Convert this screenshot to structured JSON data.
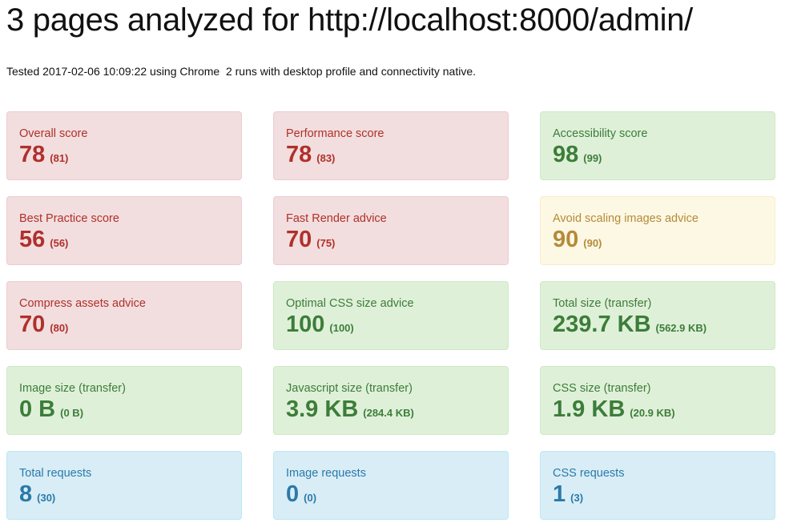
{
  "header": {
    "title": "3 pages analyzed for http://localhost:8000/admin/",
    "summary": "Tested 2017-02-06 10:09:22 using Chrome  2 runs with desktop profile and connectivity native."
  },
  "cards": [
    {
      "label": "Overall score",
      "value": "78",
      "sub": "(81)",
      "status": "danger"
    },
    {
      "label": "Performance score",
      "value": "78",
      "sub": "(83)",
      "status": "danger"
    },
    {
      "label": "Accessibility score",
      "value": "98",
      "sub": "(99)",
      "status": "success"
    },
    {
      "label": "Best Practice score",
      "value": "56",
      "sub": "(56)",
      "status": "danger"
    },
    {
      "label": "Fast Render advice",
      "value": "70",
      "sub": "(75)",
      "status": "danger"
    },
    {
      "label": "Avoid scaling images advice",
      "value": "90",
      "sub": "(90)",
      "status": "warning"
    },
    {
      "label": "Compress assets advice",
      "value": "70",
      "sub": "(80)",
      "status": "danger"
    },
    {
      "label": "Optimal CSS size advice",
      "value": "100",
      "sub": "(100)",
      "status": "success"
    },
    {
      "label": "Total size (transfer)",
      "value": "239.7 KB",
      "sub": "(562.9 KB)",
      "status": "success"
    },
    {
      "label": "Image size (transfer)",
      "value": "0 B",
      "sub": "(0 B)",
      "status": "success"
    },
    {
      "label": "Javascript size (transfer)",
      "value": "3.9 KB",
      "sub": "(284.4 KB)",
      "status": "success"
    },
    {
      "label": "CSS size (transfer)",
      "value": "1.9 KB",
      "sub": "(20.9 KB)",
      "status": "success"
    },
    {
      "label": "Total requests",
      "value": "8",
      "sub": "(30)",
      "status": "info"
    },
    {
      "label": "Image requests",
      "value": "0",
      "sub": "(0)",
      "status": "info"
    },
    {
      "label": "CSS requests",
      "value": "1",
      "sub": "(3)",
      "status": "info"
    }
  ],
  "colors": {
    "danger_bg": "#f2dede",
    "danger_text": "#b0302c",
    "success_bg": "#dff0d8",
    "success_text": "#3c7d3a",
    "warning_bg": "#fcf8e3",
    "warning_text": "#b58a3a",
    "info_bg": "#d9edf7",
    "info_text": "#2a7aa8"
  }
}
